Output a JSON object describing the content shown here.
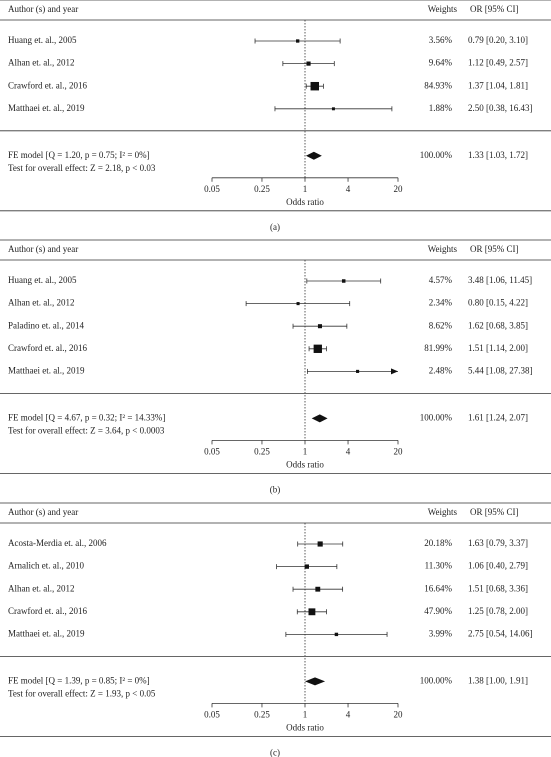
{
  "chart_data": [
    {
      "type": "forest",
      "headers": [
        "Author (s) and year",
        "Weights",
        "OR [95% CI]"
      ],
      "categories": [
        "Huang et. al., 2005",
        "Alhan et. al., 2012",
        "Crawford et. al., 2016",
        "Matthaei et. al., 2019"
      ],
      "values": [
        0.79,
        1.12,
        1.37,
        2.5
      ],
      "ci_low": [
        0.2,
        0.49,
        1.04,
        0.38
      ],
      "ci_high": [
        3.1,
        2.57,
        1.81,
        16.43
      ],
      "value_labels": [
        "0.79 [0.20, 3.10]",
        "1.12 [0.49, 2.57]",
        "1.37 [1.04, 1.81]",
        "2.50 [0.38, 16.43]"
      ],
      "weights": [
        3.56,
        9.64,
        84.93,
        1.88
      ],
      "weight_labels": [
        "3.56%",
        "9.64%",
        "84.93%",
        "1.88%"
      ],
      "summary": {
        "label": "FE model [Q = 1.20, p = 0.75; I² = 0%]",
        "test": "Test for overall effect: Z = 2.18, p < 0.03",
        "value": 1.33,
        "ci_low": 1.03,
        "ci_high": 1.72,
        "value_label": "1.33 [1.03, 1.72]",
        "weight": 100,
        "weight_label": "100.00%"
      },
      "xlabel": "Odds ratio",
      "xlim": [
        0.05,
        20
      ],
      "xticks": [
        0.05,
        0.25,
        1,
        4,
        20
      ],
      "log_x": true,
      "reference_line": 1,
      "caption": "(a)"
    },
    {
      "type": "forest",
      "headers": [
        "Author (s) and year",
        "Weights",
        "OR [95% CI]"
      ],
      "categories": [
        "Huang et. al., 2005",
        "Alhan et. al., 2012",
        "Paladino et. al., 2014",
        "Crawford et. al., 2016",
        "Matthaei et. al., 2019"
      ],
      "values": [
        3.48,
        0.8,
        1.62,
        1.51,
        5.44
      ],
      "ci_low": [
        1.06,
        0.15,
        0.68,
        1.14,
        1.08
      ],
      "ci_high": [
        11.45,
        4.22,
        3.85,
        2.0,
        27.38
      ],
      "value_labels": [
        "3.48 [1.06, 11.45]",
        "0.80 [0.15, 4.22]",
        "1.62 [0.68, 3.85]",
        "1.51 [1.14, 2.00]",
        "5.44 [1.08, 27.38]"
      ],
      "weights": [
        4.57,
        2.34,
        8.62,
        81.99,
        2.48
      ],
      "weight_labels": [
        "4.57%",
        "2.34%",
        "8.62%",
        "81.99%",
        "2.48%"
      ],
      "summary": {
        "label": "FE model [Q = 4.67, p = 0.32; I² = 14.33%]",
        "test": "Test for overall effect: Z = 3.64, p < 0.0003",
        "value": 1.61,
        "ci_low": 1.24,
        "ci_high": 2.07,
        "value_label": "1.61 [1.24, 2.07]",
        "weight": 100,
        "weight_label": "100.00%"
      },
      "xlabel": "Odds ratio",
      "xlim": [
        0.05,
        20
      ],
      "xticks": [
        0.05,
        0.25,
        1,
        4,
        20
      ],
      "log_x": true,
      "reference_line": 1,
      "caption": "(b)"
    },
    {
      "type": "forest",
      "headers": [
        "Author (s) and year",
        "Weights",
        "OR [95% CI]"
      ],
      "categories": [
        "Acosta-Merdia et. al., 2006",
        "Arnalich et. al., 2010",
        "Alhan et. al., 2012",
        "Crawford et. al., 2016",
        "Matthaei et. al., 2019"
      ],
      "values": [
        1.63,
        1.06,
        1.51,
        1.25,
        2.75
      ],
      "ci_low": [
        0.79,
        0.4,
        0.68,
        0.78,
        0.54
      ],
      "ci_high": [
        3.37,
        2.79,
        3.36,
        2.0,
        14.06
      ],
      "value_labels": [
        "1.63 [0.79, 3.37]",
        "1.06 [0.40, 2.79]",
        "1.51 [0.68, 3.36]",
        "1.25 [0.78, 2.00]",
        "2.75 [0.54, 14.06]"
      ],
      "weights": [
        20.18,
        11.3,
        16.64,
        47.9,
        3.99
      ],
      "weight_labels": [
        "20.18%",
        "11.30%",
        "16.64%",
        "47.90%",
        "3.99%"
      ],
      "summary": {
        "label": "FE model [Q = 1.39, p = 0.85; I² = 0%]",
        "test": "Test for overall effect: Z = 1.93, p < 0.05",
        "value": 1.38,
        "ci_low": 1.0,
        "ci_high": 1.91,
        "value_label": "1.38 [1.00, 1.91]",
        "weight": 100,
        "weight_label": "100.00%"
      },
      "xlabel": "Odds ratio",
      "xlim": [
        0.05,
        20
      ],
      "xticks": [
        0.05,
        0.25,
        1,
        4,
        20
      ],
      "log_x": true,
      "reference_line": 1,
      "caption": "(c)"
    }
  ]
}
